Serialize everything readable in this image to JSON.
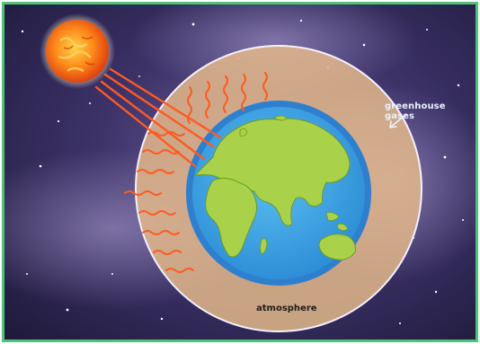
{
  "labels": {
    "greenhouse": "greenhouse gases",
    "atmosphere": "atmosphere"
  },
  "icons": {
    "sun": "sun-icon",
    "earth": "earth-globe-icon",
    "arrow": "pointer-arrow-icon",
    "heat": "heat-wave-icon"
  },
  "colors": {
    "frame": "#4fc27a",
    "space": "#2a2450",
    "atmosphere": "#e3b98a",
    "ocean": "#3aa0e0",
    "land": "#a9d24a",
    "rays": "#ff5a22",
    "sun": "#ff8a1a"
  }
}
